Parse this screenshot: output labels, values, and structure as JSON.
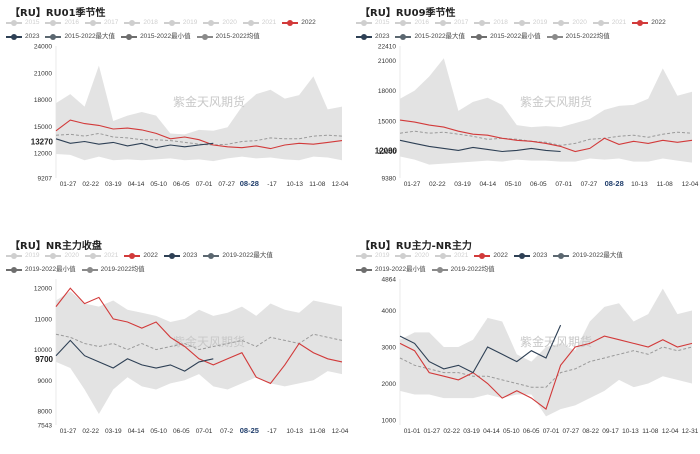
{
  "colors": {
    "c2022": "#d23a3a",
    "c2023": "#2e4055",
    "cmax": "#5b6770",
    "cband": "#e3e3e3",
    "cmean": "#9a9a9a",
    "off": "#cccccc"
  },
  "watermark": "紫金天风期货",
  "panels": [
    {
      "title": "【RU】RU01季节性",
      "legend": [
        {
          "label": "2015",
          "on": false
        },
        {
          "label": "2016",
          "on": false
        },
        {
          "label": "2017",
          "on": false
        },
        {
          "label": "2018",
          "on": false
        },
        {
          "label": "2019",
          "on": false
        },
        {
          "label": "2020",
          "on": false
        },
        {
          "label": "2021",
          "on": false
        },
        {
          "label": "2022",
          "on": true,
          "color": "#d23a3a"
        },
        {
          "label": "2023",
          "on": true,
          "color": "#2e4055"
        },
        {
          "label": "2015-2022最大值",
          "on": true,
          "color": "#5b6770"
        },
        {
          "label": "2015-2022最小值",
          "on": true,
          "color": "#6e6e6e"
        },
        {
          "label": "2015-2022均值",
          "on": true,
          "color": "#8a8a8a"
        }
      ],
      "chart_data": {
        "type": "line",
        "title": "【RU】RU01季节性",
        "ylim": [
          9207,
          24000
        ],
        "yticks": [
          "24000",
          "21000",
          "18000",
          "15000",
          "12000",
          "9207"
        ],
        "highlight_y": {
          "label": "13270",
          "value": 13270
        },
        "xticks": [
          "01-27",
          "02-22",
          "03-19",
          "04-14",
          "05-10",
          "06-05",
          "07-01",
          "07-27",
          "08-28",
          "-17",
          "10-13",
          "11-08",
          "12-04"
        ],
        "highlight_x": "08-28",
        "series": [
          {
            "name": "max",
            "values": [
              17600,
              18600,
              17200,
              21800,
              15600,
              16200,
              16600,
              16200,
              14200,
              14100,
              14600,
              14500,
              14900,
              17200,
              18600,
              19100,
              18100,
              18500,
              20600,
              16900,
              17200
            ]
          },
          {
            "name": "min",
            "values": [
              11900,
              11800,
              11200,
              11600,
              11200,
              11300,
              11200,
              11300,
              11400,
              11200,
              11300,
              11100,
              11400,
              11600,
              11400,
              11500,
              11300,
              11200,
              11600,
              11500,
              11200
            ]
          },
          {
            "name": "2015-2022均值",
            "values": [
              14000,
              14100,
              13900,
              14200,
              13800,
              13700,
              13500,
              13500,
              13400,
              13200,
              13000,
              12900,
              13000,
              13300,
              13400,
              13700,
              13600,
              13600,
              13900,
              14000,
              13900
            ]
          },
          {
            "name": "2022",
            "values": [
              14500,
              15700,
              15300,
              15100,
              14700,
              14800,
              14600,
              14200,
              13600,
              13800,
              13500,
              12900,
              12700,
              12600,
              12800,
              12500,
              12900,
              13100,
              13000,
              13200,
              13400
            ]
          },
          {
            "name": "2023",
            "values": [
              13600,
              13100,
              13300,
              13000,
              13200,
              12800,
              13100,
              12600,
              12900,
              12700,
              12900,
              13100,
              null,
              null,
              null,
              null,
              null,
              null,
              null,
              null,
              null
            ]
          }
        ]
      }
    },
    {
      "title": "【RU】RU09季节性",
      "legend": [
        {
          "label": "2015",
          "on": false
        },
        {
          "label": "2016",
          "on": false
        },
        {
          "label": "2017",
          "on": false
        },
        {
          "label": "2018",
          "on": false
        },
        {
          "label": "2019",
          "on": false
        },
        {
          "label": "2020",
          "on": false
        },
        {
          "label": "2021",
          "on": false
        },
        {
          "label": "2022",
          "on": true,
          "color": "#d23a3a"
        },
        {
          "label": "2023",
          "on": true,
          "color": "#2e4055"
        },
        {
          "label": "2015-2022最大值",
          "on": true,
          "color": "#5b6770"
        },
        {
          "label": "2015-2022最小值",
          "on": true,
          "color": "#6e6e6e"
        },
        {
          "label": "2015-2022均值",
          "on": true,
          "color": "#8a8a8a"
        }
      ],
      "chart_data": {
        "type": "line",
        "title": "【RU】RU09季节性",
        "ylim": [
          9380,
          22410
        ],
        "yticks": [
          "22410",
          "21000",
          "18000",
          "15000",
          "12000",
          "9380"
        ],
        "highlight_y": {
          "label": "12090",
          "value": 12090
        },
        "xticks": [
          "01-27",
          "02-22",
          "03-19",
          "04-14",
          "05-10",
          "06-05",
          "07-01",
          "07-27",
          "08-28",
          "10-13",
          "11-08",
          "12-04"
        ],
        "highlight_x": "08-28",
        "series": [
          {
            "name": "max",
            "values": [
              17200,
              18000,
              19400,
              21200,
              16000,
              16900,
              17300,
              16600,
              14600,
              14400,
              14500,
              14400,
              14800,
              15200,
              16100,
              16500,
              16600,
              17200,
              20200,
              17500,
              17900
            ]
          },
          {
            "name": "min",
            "values": [
              11500,
              11200,
              10700,
              10800,
              10900,
              11000,
              11100,
              11000,
              11200,
              11100,
              11100,
              11000,
              11000,
              11300,
              11200,
              11300,
              11000,
              11000,
              11300,
              11100,
              10900
            ]
          },
          {
            "name": "2015-2022均值",
            "values": [
              13800,
              14000,
              13800,
              13900,
              13700,
              13500,
              13200,
              13300,
              13200,
              13000,
              12900,
              12600,
              12800,
              13200,
              13300,
              13500,
              13600,
              13400,
              13700,
              13900,
              13800
            ]
          },
          {
            "name": "2022",
            "values": [
              15100,
              14900,
              14600,
              14400,
              14000,
              13700,
              13600,
              13300,
              13100,
              13000,
              12800,
              12500,
              12000,
              12300,
              13300,
              12700,
              13000,
              12800,
              13100,
              12900,
              13100
            ]
          },
          {
            "name": "2023",
            "values": [
              13100,
              12800,
              12500,
              12300,
              12100,
              12400,
              12200,
              12000,
              12100,
              12300,
              12100,
              12000,
              null,
              null,
              null,
              null,
              null,
              null,
              null,
              null,
              null
            ]
          }
        ]
      }
    },
    {
      "title": "【RU】NR主力收盘",
      "legend": [
        {
          "label": "2019",
          "on": false
        },
        {
          "label": "2020",
          "on": false
        },
        {
          "label": "2021",
          "on": false
        },
        {
          "label": "2022",
          "on": true,
          "color": "#d23a3a"
        },
        {
          "label": "2023",
          "on": true,
          "color": "#2e4055"
        },
        {
          "label": "2019-2022最大值",
          "on": true,
          "color": "#5b6770"
        },
        {
          "label": "2019-2022最小值",
          "on": true,
          "color": "#6e6e6e"
        },
        {
          "label": "2019-2022均值",
          "on": true,
          "color": "#8a8a8a"
        }
      ],
      "chart_data": {
        "type": "line",
        "title": "【RU】NR主力收盘",
        "ylim": [
          7543,
          12300
        ],
        "yticks": [
          "12000",
          "11000",
          "10000",
          "9000",
          "8000",
          "7543"
        ],
        "highlight_y": {
          "label": "9700",
          "value": 9700
        },
        "xticks": [
          "01-27",
          "02-22",
          "03-19",
          "04-14",
          "05-10",
          "06-05",
          "07-01",
          "07-2",
          "08-25",
          "-17",
          "10-13",
          "11-08",
          "12-04"
        ],
        "highlight_x": "08-25",
        "series": [
          {
            "name": "max",
            "values": [
              11600,
              11900,
              11500,
              11400,
              11600,
              11300,
              11200,
              11100,
              10900,
              11000,
              11300,
              11100,
              11200,
              11400,
              11100,
              11500,
              11300,
              11200,
              11600,
              11500,
              11400
            ]
          },
          {
            "name": "min",
            "values": [
              9600,
              9400,
              8700,
              7900,
              8700,
              9100,
              8800,
              8700,
              8900,
              9000,
              9200,
              8800,
              8700,
              8900,
              9100,
              8900,
              8800,
              8900,
              9000,
              9300,
              9200
            ]
          },
          {
            "name": "2019-2022均值",
            "values": [
              10500,
              10400,
              10200,
              10100,
              10200,
              10000,
              10200,
              10000,
              10100,
              10200,
              10000,
              10100,
              10200,
              10300,
              10100,
              10400,
              10300,
              10200,
              10500,
              10400,
              10300
            ]
          },
          {
            "name": "2022",
            "values": [
              11400,
              12000,
              11500,
              11700,
              11000,
              10900,
              10700,
              10900,
              10400,
              10100,
              9700,
              9500,
              9700,
              9900,
              9100,
              8900,
              9500,
              10200,
              9900,
              9700,
              9600
            ]
          },
          {
            "name": "2023",
            "values": [
              9800,
              10300,
              9800,
              9600,
              9400,
              9700,
              9500,
              9400,
              9500,
              9300,
              9600,
              9700,
              null,
              null,
              null,
              null,
              null,
              null,
              null,
              null,
              null
            ]
          }
        ]
      }
    },
    {
      "title": "【RU】RU主力-NR主力",
      "legend": [
        {
          "label": "2019",
          "on": false
        },
        {
          "label": "2020",
          "on": false
        },
        {
          "label": "2021",
          "on": false
        },
        {
          "label": "2022",
          "on": true,
          "color": "#d23a3a"
        },
        {
          "label": "2023",
          "on": true,
          "color": "#2e4055"
        },
        {
          "label": "2019-2022最大值",
          "on": true,
          "color": "#5b6770"
        },
        {
          "label": "2019-2022最小值",
          "on": true,
          "color": "#6e6e6e"
        },
        {
          "label": "2019-2022均值",
          "on": true,
          "color": "#8a8a8a"
        }
      ],
      "chart_data": {
        "type": "line",
        "title": "【RU】RU主力-NR主力",
        "ylim": [
          864,
          4864
        ],
        "yticks": [
          "4864",
          "4000",
          "3000",
          "2000",
          "1000"
        ],
        "highlight_y": null,
        "xticks": [
          "01-01",
          "01-27",
          "02-22",
          "03-19",
          "04-14",
          "05-10",
          "06-05",
          "07-01",
          "07-27",
          "08-22",
          "09-17",
          "10-13",
          "11-08",
          "12-04",
          "12-31"
        ],
        "highlight_x": null,
        "series": [
          {
            "name": "max",
            "values": [
              3200,
              3400,
              3400,
              3000,
              3000,
              3200,
              3800,
              3700,
              2800,
              2600,
              3000,
              3100,
              2900,
              3700,
              4100,
              4200,
              3700,
              3900,
              4600,
              3900,
              4000
            ]
          },
          {
            "name": "min",
            "values": [
              1800,
              1700,
              1700,
              1600,
              1600,
              1600,
              1700,
              1600,
              1700,
              1700,
              1100,
              1300,
              1400,
              1600,
              1800,
              2100,
              1900,
              2000,
              2200,
              2100,
              2000
            ]
          },
          {
            "name": "2019-2022均值",
            "values": [
              2700,
              2500,
              2400,
              2300,
              2300,
              2200,
              2200,
              2100,
              2000,
              1900,
              1900,
              2300,
              2400,
              2600,
              2700,
              2800,
              2900,
              2800,
              3000,
              2900,
              3000
            ]
          },
          {
            "name": "2022",
            "values": [
              3100,
              2900,
              2300,
              2200,
              2100,
              2300,
              2000,
              1600,
              1800,
              1600,
              1300,
              2500,
              3000,
              3100,
              3300,
              3200,
              3100,
              3000,
              3200,
              3000,
              3100
            ]
          },
          {
            "name": "2023",
            "values": [
              3300,
              3100,
              2600,
              2400,
              2500,
              2300,
              3000,
              2800,
              2600,
              2900,
              2700,
              3600,
              null,
              null,
              null,
              null,
              null,
              null,
              null,
              null,
              null
            ]
          }
        ]
      }
    }
  ]
}
